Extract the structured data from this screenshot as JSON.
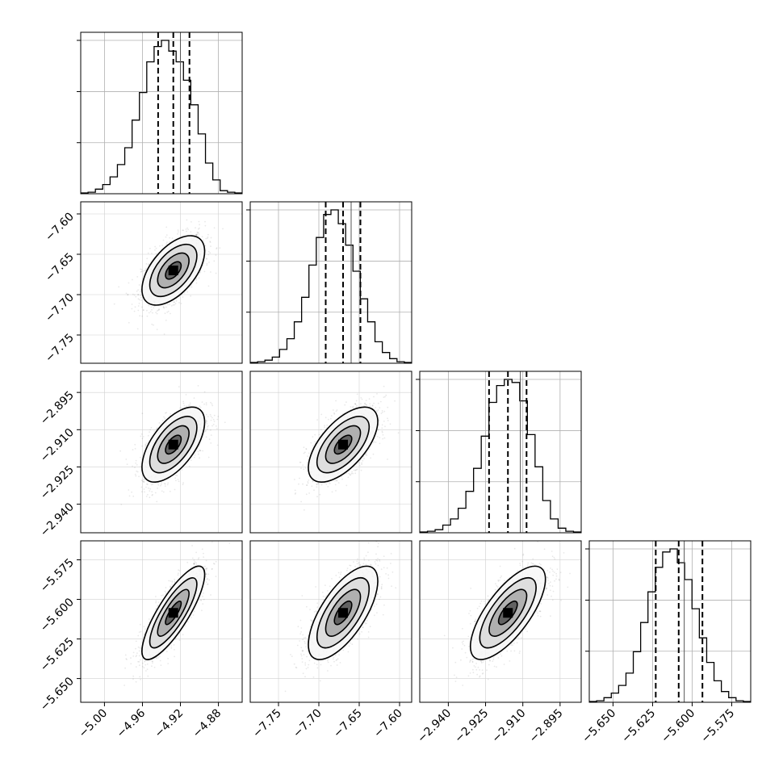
{
  "chart_data": {
    "type": "corner",
    "description_none": "",
    "params": [
      {
        "range": [
          -5.025,
          -4.855
        ],
        "ticks": [
          -5.0,
          -4.96,
          -4.92,
          -4.88
        ],
        "tick_labels": [
          "−5.00",
          "−4.96",
          "−4.92",
          "−4.88"
        ],
        "quantiles": [
          -4.9435,
          -4.9275,
          -4.9105
        ],
        "truth": -4.92
      },
      {
        "range": [
          -7.785,
          -7.585
        ],
        "ticks": [
          -7.75,
          -7.7,
          -7.65,
          -7.6
        ],
        "tick_labels": [
          "−7.75",
          "−7.70",
          "−7.65",
          "−7.60"
        ],
        "quantiles": [
          -7.6915,
          -7.67,
          -7.6485
        ],
        "truth": -7.66
      },
      {
        "range": [
          -2.9515,
          -2.8865
        ],
        "ticks": [
          -2.94,
          -2.925,
          -2.91,
          -2.895
        ],
        "tick_labels": [
          "−2.940",
          "−2.925",
          "−2.910",
          "−2.895"
        ],
        "quantiles": [
          -2.9236,
          -2.916,
          -2.9085
        ],
        "truth": -2.911
      },
      {
        "range": [
          -5.665,
          -5.563
        ],
        "ticks": [
          -5.65,
          -5.625,
          -5.6,
          -5.575
        ],
        "tick_labels": [
          "−5.650",
          "−5.625",
          "−5.600",
          "−5.575"
        ],
        "quantiles": [
          -5.623,
          -5.6085,
          -5.5935
        ],
        "truth": -5.605
      }
    ],
    "histograms": [
      [
        0.005,
        0.01,
        0.03,
        0.06,
        0.11,
        0.19,
        0.3,
        0.48,
        0.66,
        0.86,
        0.96,
        1.0,
        0.93,
        0.86,
        0.74,
        0.58,
        0.39,
        0.2,
        0.09,
        0.02,
        0.01,
        0.005
      ],
      [
        0.005,
        0.01,
        0.02,
        0.04,
        0.09,
        0.16,
        0.27,
        0.43,
        0.64,
        0.82,
        0.97,
        1.0,
        0.91,
        0.77,
        0.6,
        0.42,
        0.27,
        0.14,
        0.07,
        0.03,
        0.01,
        0.005
      ],
      [
        0.005,
        0.01,
        0.02,
        0.05,
        0.09,
        0.16,
        0.27,
        0.42,
        0.63,
        0.85,
        0.96,
        1.0,
        0.98,
        0.86,
        0.64,
        0.43,
        0.21,
        0.09,
        0.03,
        0.01,
        0.005
      ],
      [
        0.005,
        0.01,
        0.03,
        0.06,
        0.11,
        0.19,
        0.33,
        0.52,
        0.72,
        0.88,
        0.98,
        1.0,
        0.91,
        0.8,
        0.61,
        0.42,
        0.26,
        0.14,
        0.07,
        0.03,
        0.01,
        0.005
      ]
    ],
    "correlations": {
      "1-0": 0.55,
      "2-0": 0.6,
      "2-1": 0.62,
      "3-0": 0.82,
      "3-1": 0.68,
      "3-2": 0.72
    },
    "contour_sigma_levels": [
      0.5,
      1.0,
      1.5,
      2.0
    ],
    "grid": true
  }
}
